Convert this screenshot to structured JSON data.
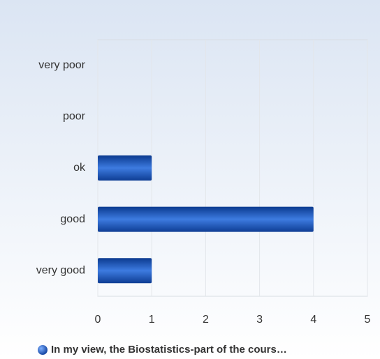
{
  "chart_data": {
    "type": "bar",
    "orientation": "horizontal",
    "categories": [
      "very poor",
      "poor",
      "ok",
      "good",
      "very good"
    ],
    "series": [
      {
        "name": "In my view, the Biostatistics-part of the cours…",
        "color": "#1f5fd1",
        "values": [
          0,
          0,
          1,
          4,
          1
        ]
      }
    ],
    "xlim": [
      0,
      5
    ],
    "xticks": [
      0,
      1,
      2,
      3,
      4,
      5
    ],
    "grid": true,
    "legend": "bottom"
  }
}
